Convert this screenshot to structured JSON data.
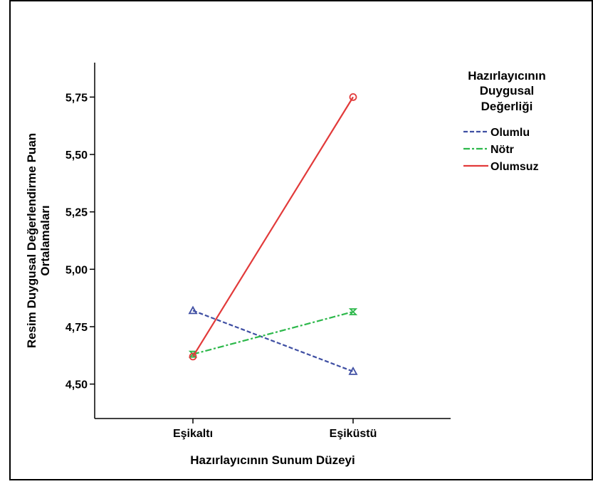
{
  "chart_data": {
    "type": "line",
    "title": "",
    "xlabel": "Hazırlayıcının Sunum Düzeyi",
    "ylabel_lines": [
      "Resim Duygusal Değerlendirme Puan",
      "Ortalamaları"
    ],
    "categories": [
      "Eşikaltı",
      "Eşiküstü"
    ],
    "ylim": [
      4.35,
      5.9
    ],
    "yticks": [
      4.5,
      4.75,
      5.0,
      5.25,
      5.5,
      5.75
    ],
    "ytick_labels": [
      "4,50",
      "4,75",
      "5,00",
      "5,25",
      "5,50",
      "5,75"
    ],
    "grid": false,
    "legend": {
      "position": "top-right",
      "title_lines": [
        "Hazırlayıcının",
        "Duygusal",
        "Değerliği"
      ]
    },
    "series": [
      {
        "name": "Olumlu",
        "values": [
          4.82,
          4.555
        ],
        "color": "#3f4fa3",
        "dash": "dashed",
        "marker": "triangle"
      },
      {
        "name": "Nötr",
        "values": [
          4.63,
          4.815
        ],
        "color": "#2db84b",
        "dash": "dashdot",
        "marker": "hourglass"
      },
      {
        "name": "Olumsuz",
        "values": [
          4.62,
          5.75
        ],
        "color": "#e23a3a",
        "dash": "solid",
        "marker": "circle"
      }
    ]
  }
}
